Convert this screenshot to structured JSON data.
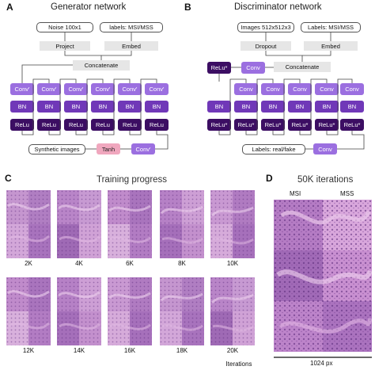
{
  "panels": {
    "a": {
      "letter": "A",
      "title": "Generator network",
      "noise": "Noise 100x1",
      "labels": "labels: MSI/MSS",
      "project": "Project",
      "embed": "Embed",
      "concatenate": "Concatenate",
      "conv_prime": "Conv'",
      "conv_plain": "Conv",
      "bn": "BN",
      "relu": "ReLu",
      "synthetic": "Synthetic images",
      "tanh": "Tanh"
    },
    "b": {
      "letter": "B",
      "title": "Discriminator network",
      "images": "Images 512x512x3",
      "labels": "Labels: MSI/MSS",
      "dropout": "Dropout",
      "embed": "Embed",
      "concatenate": "Concatenate",
      "relu_star": "ReLu*",
      "conv": "Conv",
      "bn": "BN",
      "output": "Labels: real/fake"
    },
    "c": {
      "letter": "C",
      "title": "Training progress",
      "tiles_row1": [
        "2K",
        "4K",
        "6K",
        "8K",
        "10K"
      ],
      "tiles_row2": [
        "12K",
        "14K",
        "16K",
        "18K",
        "20K"
      ],
      "iterations": "Iterations"
    },
    "d": {
      "letter": "D",
      "title": "50K iterations",
      "msi": "MSI",
      "mss": "MSS",
      "scale": "1024 px"
    }
  },
  "colors": {
    "conv": "#9b6fe0",
    "bn": "#7038b8",
    "relu": "#3c0e63",
    "tanh": "#f0a7be",
    "tissue": "#b77fc6"
  }
}
